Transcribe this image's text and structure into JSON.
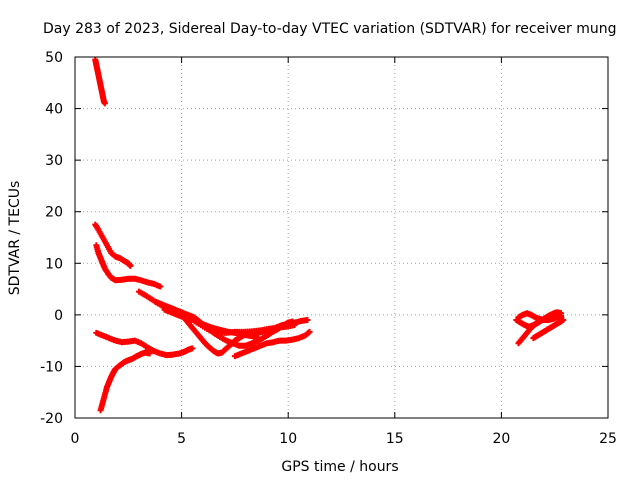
{
  "chart_data": {
    "type": "scatter",
    "title": "Day 283 of 2023, Sidereal Day-to-day VTEC variation (SDTVAR) for receiver mung",
    "xlabel": "GPS time / hours",
    "ylabel": "SDTVAR / TECUs",
    "xlim": [
      0,
      25
    ],
    "ylim": [
      -20,
      50
    ],
    "xticks": [
      "0",
      "5",
      "10",
      "15",
      "20",
      "25"
    ],
    "yticks": [
      "-20",
      "-10",
      "0",
      "10",
      "20",
      "30",
      "40",
      "50"
    ],
    "grid": true,
    "marker_color": "#ff0000",
    "series": [
      {
        "points": [
          [
            0.95,
            49.5
          ],
          [
            1.0,
            48.5
          ],
          [
            1.05,
            47.5
          ],
          [
            1.1,
            46.5
          ],
          [
            1.15,
            45.5
          ],
          [
            1.2,
            44.5
          ],
          [
            1.25,
            43.5
          ],
          [
            1.3,
            42.5
          ],
          [
            1.35,
            41.5
          ],
          [
            1.4,
            41.0
          ]
        ]
      },
      {
        "points": [
          [
            0.95,
            17.5
          ],
          [
            1.1,
            16.5
          ],
          [
            1.3,
            15.0
          ],
          [
            1.5,
            13.5
          ],
          [
            1.7,
            12.0
          ],
          [
            1.9,
            11.3
          ],
          [
            2.1,
            11.0
          ],
          [
            2.3,
            10.5
          ],
          [
            2.5,
            10.0
          ],
          [
            2.6,
            9.5
          ]
        ]
      },
      {
        "points": [
          [
            1.0,
            13.5
          ],
          [
            1.1,
            12.0
          ],
          [
            1.2,
            11.0
          ],
          [
            1.3,
            10.0
          ],
          [
            1.4,
            9.0
          ],
          [
            1.55,
            8.0
          ],
          [
            1.7,
            7.2
          ],
          [
            1.9,
            6.7
          ],
          [
            2.2,
            6.8
          ],
          [
            2.5,
            7.0
          ],
          [
            2.8,
            7.0
          ],
          [
            3.1,
            6.7
          ],
          [
            3.4,
            6.3
          ],
          [
            3.7,
            6.0
          ],
          [
            4.0,
            5.5
          ]
        ]
      },
      {
        "points": [
          [
            3.0,
            4.5
          ],
          [
            3.3,
            3.8
          ],
          [
            3.6,
            3.0
          ],
          [
            3.9,
            2.2
          ],
          [
            4.2,
            1.5
          ],
          [
            4.5,
            1.0
          ],
          [
            4.8,
            0.3
          ],
          [
            5.1,
            -0.3
          ],
          [
            5.4,
            -0.8
          ],
          [
            5.7,
            -1.2
          ],
          [
            6.0,
            -1.8
          ],
          [
            6.3,
            -2.3
          ],
          [
            6.6,
            -2.7
          ],
          [
            6.9,
            -3.0
          ],
          [
            7.2,
            -3.3
          ],
          [
            7.5,
            -3.5
          ],
          [
            7.8,
            -3.7
          ],
          [
            8.1,
            -4.0
          ],
          [
            8.4,
            -4.2
          ],
          [
            8.6,
            -4.5
          ]
        ]
      },
      {
        "points": [
          [
            3.8,
            2.5
          ],
          [
            4.1,
            2.0
          ],
          [
            4.4,
            1.5
          ],
          [
            4.7,
            1.0
          ],
          [
            5.0,
            0.5
          ],
          [
            5.3,
            0.0
          ],
          [
            5.6,
            -0.5
          ],
          [
            5.9,
            -1.5
          ],
          [
            6.2,
            -2.5
          ],
          [
            6.5,
            -3.5
          ],
          [
            6.8,
            -4.3
          ],
          [
            7.1,
            -5.0
          ],
          [
            7.4,
            -5.5
          ],
          [
            7.7,
            -6.0
          ],
          [
            8.0,
            -6.0
          ],
          [
            8.3,
            -5.5
          ],
          [
            8.6,
            -5.0
          ],
          [
            8.9,
            -4.3
          ],
          [
            9.2,
            -3.5
          ],
          [
            9.5,
            -2.8
          ],
          [
            9.8,
            -2.0
          ],
          [
            10.0,
            -1.5
          ],
          [
            10.2,
            -1.3
          ]
        ]
      },
      {
        "points": [
          [
            4.2,
            1.0
          ],
          [
            4.5,
            0.5
          ],
          [
            4.8,
            0.0
          ],
          [
            5.1,
            -0.5
          ],
          [
            5.3,
            -1.5
          ],
          [
            5.5,
            -2.5
          ],
          [
            5.7,
            -3.5
          ],
          [
            5.9,
            -4.5
          ],
          [
            6.1,
            -5.5
          ],
          [
            6.3,
            -6.3
          ],
          [
            6.5,
            -7.0
          ],
          [
            6.7,
            -7.5
          ],
          [
            6.9,
            -7.3
          ],
          [
            7.1,
            -6.5
          ],
          [
            7.3,
            -5.8
          ],
          [
            7.5,
            -5.0
          ],
          [
            7.7,
            -4.5
          ],
          [
            7.9,
            -4.0
          ],
          [
            8.2,
            -3.5
          ],
          [
            8.5,
            -3.5
          ],
          [
            8.8,
            -3.3
          ],
          [
            9.1,
            -3.0
          ],
          [
            9.4,
            -2.5
          ],
          [
            9.7,
            -2.0
          ],
          [
            10.0,
            -1.8
          ],
          [
            10.3,
            -1.5
          ],
          [
            10.6,
            -1.2
          ],
          [
            10.9,
            -1.0
          ]
        ]
      },
      {
        "points": [
          [
            5.5,
            -1.0
          ],
          [
            5.9,
            -2.0
          ],
          [
            6.3,
            -3.0
          ],
          [
            6.7,
            -3.5
          ],
          [
            7.1,
            -3.5
          ],
          [
            7.5,
            -3.3
          ],
          [
            7.9,
            -3.3
          ],
          [
            8.3,
            -3.2
          ],
          [
            8.7,
            -3.0
          ],
          [
            9.1,
            -2.7
          ],
          [
            9.5,
            -2.5
          ],
          [
            9.9,
            -2.3
          ],
          [
            10.3,
            -2.0
          ]
        ]
      },
      {
        "points": [
          [
            7.5,
            -8.0
          ],
          [
            7.8,
            -7.5
          ],
          [
            8.1,
            -7.0
          ],
          [
            8.4,
            -6.5
          ],
          [
            8.7,
            -6.0
          ],
          [
            9.0,
            -5.5
          ],
          [
            9.3,
            -5.3
          ],
          [
            9.6,
            -5.0
          ],
          [
            9.9,
            -5.0
          ],
          [
            10.2,
            -4.8
          ],
          [
            10.5,
            -4.5
          ],
          [
            10.8,
            -4.0
          ],
          [
            11.0,
            -3.3
          ]
        ]
      },
      {
        "points": [
          [
            1.0,
            -3.5
          ],
          [
            1.3,
            -4.0
          ],
          [
            1.6,
            -4.5
          ],
          [
            1.9,
            -5.0
          ],
          [
            2.2,
            -5.3
          ],
          [
            2.5,
            -5.2
          ],
          [
            2.8,
            -5.0
          ],
          [
            3.1,
            -5.5
          ],
          [
            3.4,
            -6.3
          ],
          [
            3.7,
            -7.0
          ],
          [
            4.0,
            -7.5
          ],
          [
            4.3,
            -7.8
          ],
          [
            4.6,
            -7.7
          ],
          [
            4.9,
            -7.5
          ],
          [
            5.1,
            -7.2
          ],
          [
            5.3,
            -6.8
          ],
          [
            5.5,
            -6.5
          ]
        ]
      },
      {
        "points": [
          [
            1.2,
            -18.5
          ],
          [
            1.3,
            -17.0
          ],
          [
            1.4,
            -15.5
          ],
          [
            1.5,
            -14.0
          ],
          [
            1.6,
            -13.0
          ],
          [
            1.7,
            -12.0
          ],
          [
            1.8,
            -11.2
          ],
          [
            1.9,
            -10.5
          ],
          [
            2.1,
            -9.8
          ],
          [
            2.3,
            -9.2
          ],
          [
            2.5,
            -8.8
          ],
          [
            2.7,
            -8.5
          ],
          [
            2.9,
            -8.0
          ],
          [
            3.1,
            -7.6
          ],
          [
            3.3,
            -7.3
          ],
          [
            3.5,
            -7.5
          ]
        ]
      },
      {
        "points": [
          [
            20.7,
            -1.0
          ],
          [
            20.9,
            -1.5
          ],
          [
            21.1,
            -2.0
          ],
          [
            21.3,
            -2.3
          ],
          [
            21.5,
            -2.0
          ],
          [
            21.7,
            -1.5
          ],
          [
            21.9,
            -1.0
          ],
          [
            22.1,
            -0.5
          ],
          [
            22.3,
            0.0
          ],
          [
            22.5,
            0.3
          ],
          [
            22.7,
            0.0
          ],
          [
            22.8,
            -0.5
          ]
        ]
      },
      {
        "points": [
          [
            20.8,
            -5.5
          ],
          [
            21.0,
            -4.5
          ],
          [
            21.2,
            -3.5
          ],
          [
            21.4,
            -2.5
          ],
          [
            21.6,
            -1.8
          ],
          [
            21.8,
            -1.3
          ],
          [
            22.0,
            -0.8
          ],
          [
            22.2,
            -0.3
          ],
          [
            22.4,
            0.2
          ],
          [
            22.6,
            0.5
          ],
          [
            22.8,
            0.3
          ]
        ]
      },
      {
        "points": [
          [
            21.5,
            -4.5
          ],
          [
            21.7,
            -4.0
          ],
          [
            21.9,
            -3.5
          ],
          [
            22.1,
            -3.0
          ],
          [
            22.3,
            -2.5
          ],
          [
            22.5,
            -2.0
          ],
          [
            22.7,
            -1.5
          ],
          [
            22.9,
            -1.0
          ]
        ]
      },
      {
        "points": [
          [
            20.8,
            -0.5
          ],
          [
            21.0,
            0.0
          ],
          [
            21.2,
            0.3
          ],
          [
            21.4,
            0.0
          ],
          [
            21.6,
            -0.5
          ],
          [
            21.8,
            -0.8
          ],
          [
            22.0,
            -1.0
          ],
          [
            22.2,
            -1.0
          ],
          [
            22.4,
            -0.8
          ],
          [
            22.6,
            -0.5
          ],
          [
            22.8,
            -0.2
          ]
        ]
      }
    ]
  }
}
